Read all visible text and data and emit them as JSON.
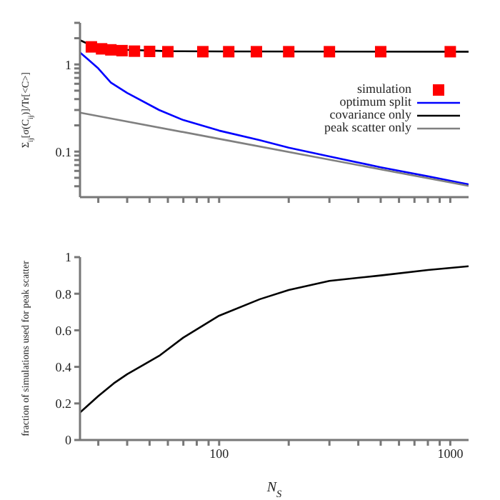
{
  "chart_data": [
    {
      "type": "line",
      "ylabel": "Σ$_{ij}$[σ(C$_{ij}$)]/Tr[<C>]",
      "log": "xy",
      "legend": "right",
      "tick_labels": "y",
      "xlim": [
        25,
        1200
      ],
      "ylim": [
        0.03,
        3
      ],
      "xticks": [
        {
          "value": 30,
          "label": null
        },
        {
          "value": 40,
          "label": null
        },
        {
          "value": 50,
          "label": null
        },
        {
          "value": 60,
          "label": null
        },
        {
          "value": 70,
          "label": null
        },
        {
          "value": 80,
          "label": null
        },
        {
          "value": 90,
          "label": null
        },
        {
          "value": 100,
          "label": null
        },
        {
          "value": 200,
          "label": null
        },
        {
          "value": 300,
          "label": null
        },
        {
          "value": 400,
          "label": null
        },
        {
          "value": 500,
          "label": null
        },
        {
          "value": 600,
          "label": null
        },
        {
          "value": 700,
          "label": null
        },
        {
          "value": 800,
          "label": null
        },
        {
          "value": 900,
          "label": null
        },
        {
          "value": 1000,
          "label": null
        }
      ],
      "yticks": [
        {
          "value": 0.04,
          "label": null
        },
        {
          "value": 0.05,
          "label": null
        },
        {
          "value": 0.06,
          "label": null
        },
        {
          "value": 0.07,
          "label": null
        },
        {
          "value": 0.08,
          "label": null
        },
        {
          "value": 0.09,
          "label": null
        },
        0.1,
        {
          "value": 0.2,
          "label": null
        },
        {
          "value": 0.3,
          "label": null
        },
        {
          "value": 0.4,
          "label": null
        },
        {
          "value": 0.5,
          "label": null
        },
        {
          "value": 0.6,
          "label": null
        },
        {
          "value": 0.7,
          "label": null
        },
        {
          "value": 0.8,
          "label": null
        },
        {
          "value": 0.9,
          "label": null
        },
        1,
        {
          "value": 2,
          "label": null
        },
        {
          "value": 3,
          "label": null
        }
      ],
      "series": [
        {
          "name": "simulation",
          "type": "scatter",
          "marker": "square",
          "color": "#ff0000",
          "x": [
            28,
            31,
            34,
            38,
            43,
            50,
            60,
            85,
            110,
            145,
            200,
            300,
            500,
            1000
          ],
          "values": [
            1.59,
            1.51,
            1.47,
            1.44,
            1.42,
            1.41,
            1.4,
            1.4,
            1.4,
            1.4,
            1.4,
            1.4,
            1.4,
            1.4
          ]
        },
        {
          "name": "optimum split",
          "marker": "none",
          "color": "#0000ff",
          "x": [
            25,
            27,
            30,
            34,
            40,
            55,
            70,
            100,
            150,
            200,
            300,
            500,
            800,
            1200
          ],
          "values": [
            1.37,
            1.15,
            0.9,
            0.62,
            0.47,
            0.3,
            0.23,
            0.174,
            0.135,
            0.111,
            0.088,
            0.066,
            0.052,
            0.042
          ]
        },
        {
          "name": "covariance only",
          "marker": "none",
          "color": "#000000",
          "x": [
            25,
            28,
            31,
            40,
            60,
            100,
            1200
          ],
          "values": [
            1.9,
            1.65,
            1.55,
            1.47,
            1.42,
            1.41,
            1.4
          ]
        },
        {
          "name": "peak scatter only",
          "marker": "none",
          "color": "#808080",
          "x": [
            25,
            100,
            1200
          ],
          "values": [
            0.28,
            0.14,
            0.0404
          ]
        }
      ]
    },
    {
      "type": "line",
      "xlabel": "N$_{S}$",
      "ylabel": "fraction of simulations used for peak scatter",
      "log": "x",
      "xlim": [
        25,
        1200
      ],
      "ylim": [
        0,
        1
      ],
      "xticks": [
        {
          "value": 30,
          "label": null
        },
        {
          "value": 40,
          "label": null
        },
        {
          "value": 50,
          "label": null
        },
        {
          "value": 60,
          "label": null
        },
        {
          "value": 70,
          "label": null
        },
        {
          "value": 80,
          "label": null
        },
        {
          "value": 90,
          "label": null
        },
        100,
        {
          "value": 200,
          "label": null
        },
        {
          "value": 300,
          "label": null
        },
        {
          "value": 400,
          "label": null
        },
        {
          "value": 500,
          "label": null
        },
        {
          "value": 600,
          "label": null
        },
        {
          "value": 700,
          "label": null
        },
        {
          "value": 800,
          "label": null
        },
        {
          "value": 900,
          "label": null
        },
        1000
      ],
      "yticks": [
        0,
        0.2,
        0.4,
        0.6,
        0.8,
        1
      ],
      "series": [
        {
          "marker": "none",
          "color": "#000000",
          "x": [
            25,
            30,
            35,
            40,
            55,
            70,
            100,
            150,
            200,
            300,
            500,
            800,
            1200
          ],
          "values": [
            0.15,
            0.24,
            0.31,
            0.36,
            0.46,
            0.56,
            0.68,
            0.77,
            0.82,
            0.87,
            0.9,
            0.93,
            0.95
          ]
        }
      ]
    }
  ]
}
